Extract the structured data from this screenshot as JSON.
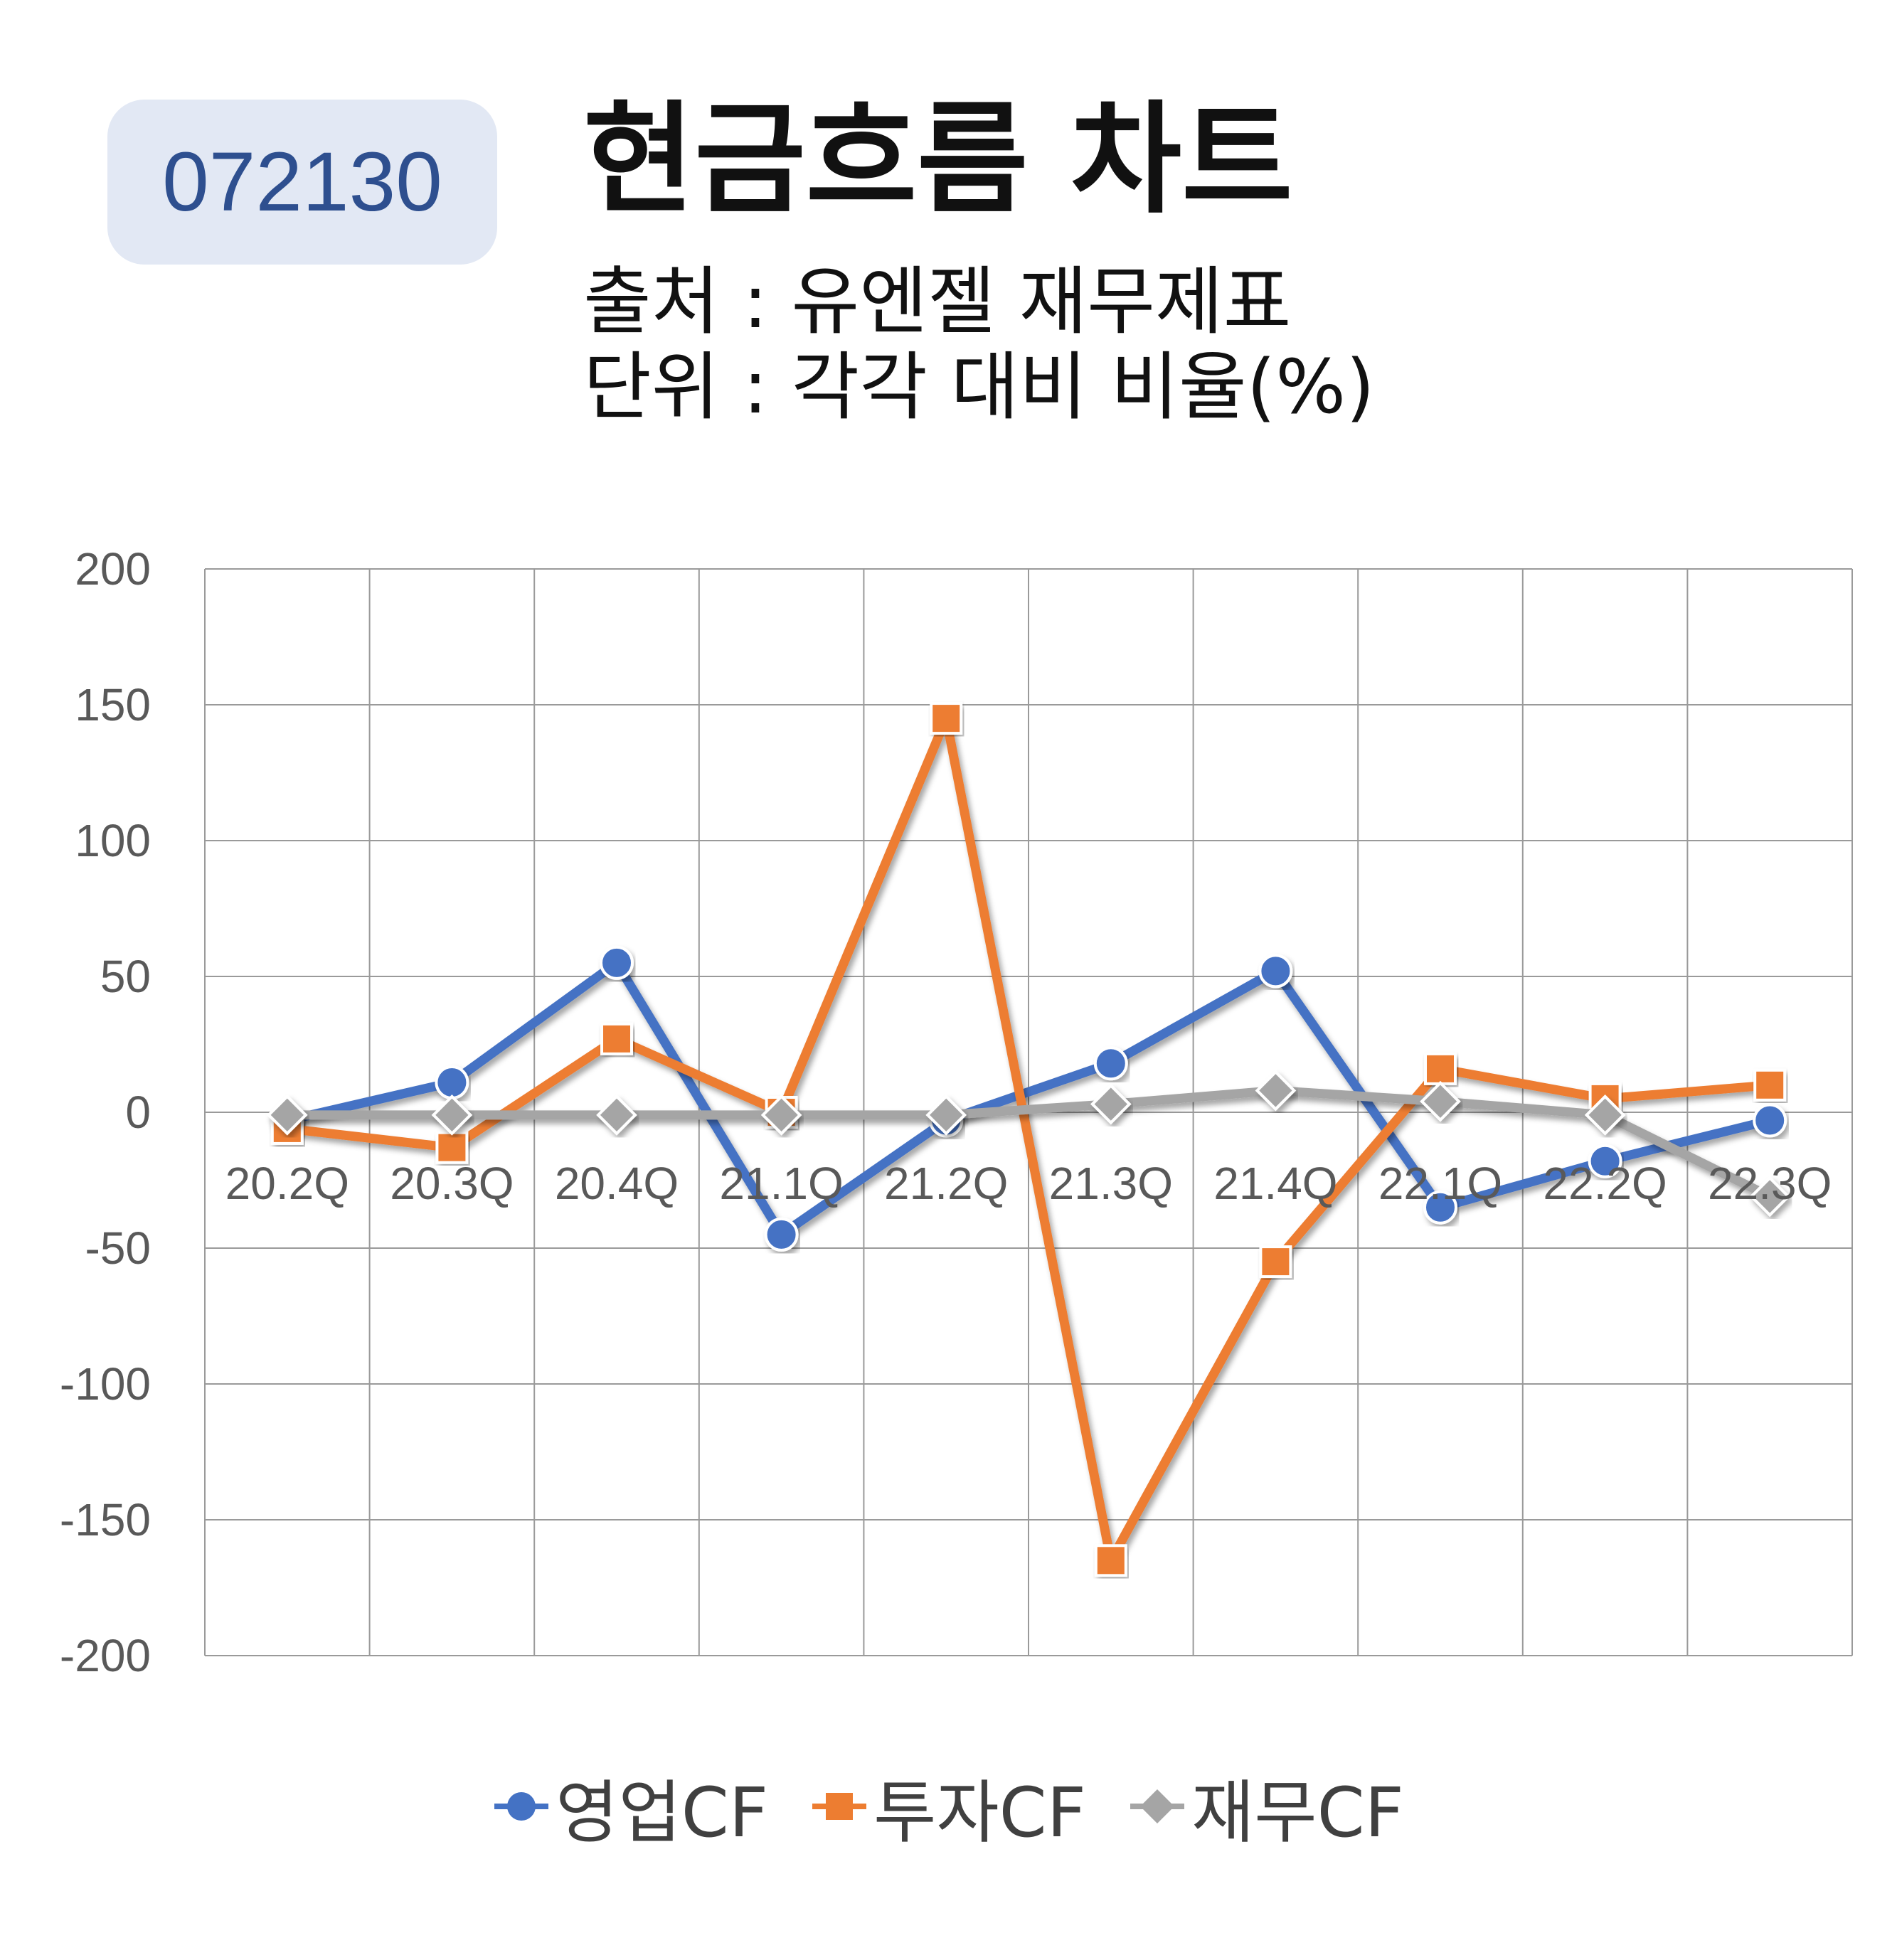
{
  "header": {
    "code": "072130",
    "title": "현금흐름 차트",
    "source": "출처 : 유엔젤 재무제표",
    "unit": "단위 : 각각 대비 비율(%)"
  },
  "chart_data": {
    "type": "line",
    "title": "현금흐름 차트",
    "categories": [
      "20.2Q",
      "20.3Q",
      "20.4Q",
      "21.1Q",
      "21.2Q",
      "21.3Q",
      "21.4Q",
      "22.1Q",
      "22.2Q",
      "22.3Q"
    ],
    "ylim": [
      -200,
      200
    ],
    "yticks": [
      200,
      150,
      100,
      50,
      0,
      -50,
      -100,
      -150,
      -200
    ],
    "grid": true,
    "legend_position": "bottom",
    "series": [
      {
        "name": "영업CF",
        "color": "#4472c4",
        "marker": "circle",
        "values": [
          -3,
          11,
          55,
          -45,
          -3,
          18,
          52,
          -35,
          -18,
          -3
        ]
      },
      {
        "name": "투자CF",
        "color": "#ed7d31",
        "marker": "square",
        "values": [
          -6,
          -13,
          27,
          0,
          145,
          -165,
          -55,
          16,
          5,
          10
        ]
      },
      {
        "name": "재무CF",
        "color": "#a5a5a5",
        "marker": "diamond",
        "values": [
          -1,
          -1,
          -1,
          -1,
          -1,
          3,
          8,
          4,
          -1,
          -31
        ]
      }
    ]
  }
}
